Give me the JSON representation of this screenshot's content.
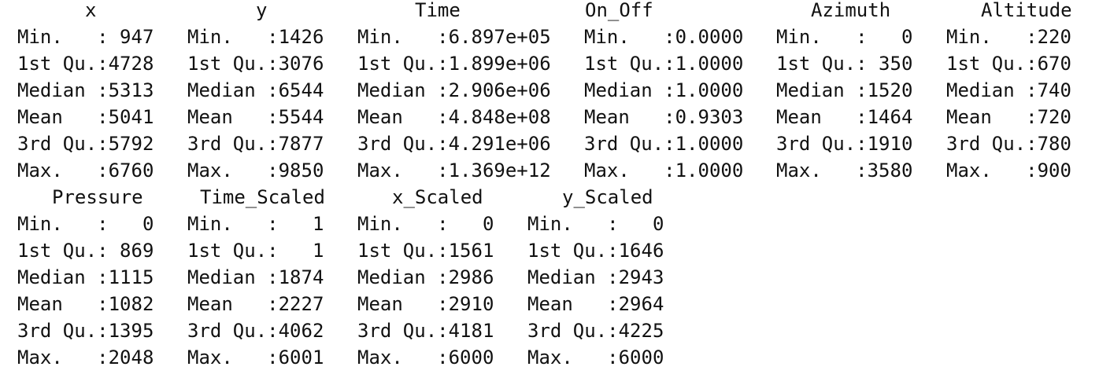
{
  "blocks": [
    {
      "columns": [
        {
          "header": "x",
          "rows": [
            "Min.   : 947",
            "1st Qu.:4728",
            "Median :5313",
            "Mean   :5041",
            "3rd Qu.:5792",
            "Max.   :6760"
          ]
        },
        {
          "header": "y",
          "rows": [
            "Min.   :1426",
            "1st Qu.:3076",
            "Median :6544",
            "Mean   :5544",
            "3rd Qu.:7877",
            "Max.   :9850"
          ]
        },
        {
          "header": "Time",
          "rows": [
            "Min.   :6.897e+05",
            "1st Qu.:1.899e+06",
            "Median :2.906e+06",
            "Mean   :4.848e+08",
            "3rd Qu.:4.291e+06",
            "Max.   :1.369e+12"
          ]
        },
        {
          "header": "On_Off",
          "rows": [
            "Min.   :0.0000",
            "1st Qu.:1.0000",
            "Median :1.0000",
            "Mean   :0.9303",
            "3rd Qu.:1.0000",
            "Max.   :1.0000"
          ]
        },
        {
          "header": "Azimuth",
          "rows": [
            "Min.   :   0",
            "1st Qu.: 350",
            "Median :1520",
            "Mean   :1464",
            "3rd Qu.:1910",
            "Max.   :3580"
          ]
        },
        {
          "header": "Altitude",
          "rows": [
            "Min.   :220",
            "1st Qu.:670",
            "Median :740",
            "Mean   :720",
            "3rd Qu.:780",
            "Max.   :900"
          ]
        }
      ]
    },
    {
      "columns": [
        {
          "header": "Pressure",
          "rows": [
            "Min.   :   0",
            "1st Qu.: 869",
            "Median :1115",
            "Mean   :1082",
            "3rd Qu.:1395",
            "Max.   :2048"
          ]
        },
        {
          "header": "Time_Scaled",
          "rows": [
            "Min.   :   1",
            "1st Qu.:   1",
            "Median :1874",
            "Mean   :2227",
            "3rd Qu.:4062",
            "Max.   :6001"
          ]
        },
        {
          "header": "x_Scaled",
          "rows": [
            "Min.   :   0",
            "1st Qu.:1561",
            "Median :2986",
            "Mean   :2910",
            "3rd Qu.:4181",
            "Max.   :6000"
          ]
        },
        {
          "header": "y_Scaled",
          "rows": [
            "Min.   :   0",
            "1st Qu.:1646",
            "Median :2943",
            "Mean   :2964",
            "3rd Qu.:4225",
            "Max.   :6000"
          ]
        }
      ]
    }
  ]
}
